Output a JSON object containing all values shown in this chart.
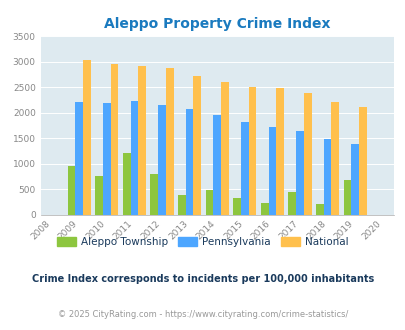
{
  "title": "Aleppo Property Crime Index",
  "years": [
    2008,
    2009,
    2010,
    2011,
    2012,
    2013,
    2014,
    2015,
    2016,
    2017,
    2018,
    2019,
    2020
  ],
  "aleppo": [
    0,
    950,
    750,
    1200,
    800,
    380,
    490,
    330,
    220,
    450,
    210,
    680,
    0
  ],
  "pennsylvania": [
    0,
    2200,
    2190,
    2230,
    2160,
    2070,
    1950,
    1810,
    1720,
    1640,
    1490,
    1390,
    0
  ],
  "national": [
    0,
    3040,
    2960,
    2910,
    2870,
    2730,
    2600,
    2500,
    2480,
    2380,
    2210,
    2110,
    0
  ],
  "aleppo_color": "#8dc63f",
  "pennsylvania_color": "#4da6ff",
  "national_color": "#ffc04d",
  "plot_bg_color": "#deeaf0",
  "ylim": [
    0,
    3500
  ],
  "yticks": [
    0,
    500,
    1000,
    1500,
    2000,
    2500,
    3000,
    3500
  ],
  "legend_labels": [
    "Aleppo Township",
    "Pennsylvania",
    "National"
  ],
  "footnote1": "Crime Index corresponds to incidents per 100,000 inhabitants",
  "footnote2": "© 2025 CityRating.com - https://www.cityrating.com/crime-statistics/",
  "title_color": "#1a7abf",
  "footnote1_color": "#1a3a5c",
  "footnote2_color": "#999999",
  "tick_color": "#888888",
  "grid_color": "#c8dce8"
}
